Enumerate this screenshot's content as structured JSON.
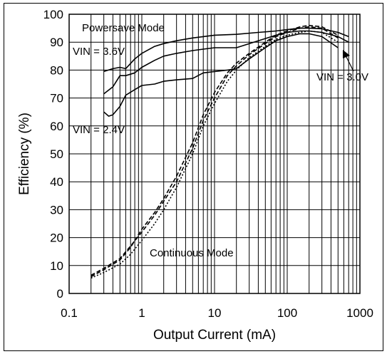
{
  "chart_data": {
    "type": "line",
    "title": "",
    "xlabel": "Output Current (mA)",
    "ylabel": "Efficiency (%)",
    "xscale": "log",
    "xlim": [
      0.1,
      1000
    ],
    "ylim": [
      0,
      100
    ],
    "grid": true,
    "x_ticks": [
      "0.1",
      "1",
      "10",
      "100",
      "1000"
    ],
    "y_ticks": [
      "0",
      "10",
      "20",
      "30",
      "40",
      "50",
      "60",
      "70",
      "80",
      "90",
      "100"
    ],
    "annotations": [
      "Powersave Mode",
      "VIN = 3.6V",
      "VIN = 2.4V",
      "VIN = 3.0V",
      "Continuous Mode"
    ],
    "series": [
      {
        "mode": "powersave",
        "vin": "3.6V",
        "style": "solid",
        "x": [
          0.3,
          0.4,
          0.5,
          0.6,
          0.8,
          1,
          1.5,
          2,
          3,
          5,
          7,
          10,
          20,
          40,
          70,
          100,
          150,
          200,
          300,
          500,
          700
        ],
        "y": [
          79.5,
          80.5,
          81,
          80.5,
          84,
          86,
          88.5,
          89.5,
          90.5,
          91.5,
          92,
          92.5,
          92.8,
          93.5,
          94,
          94.5,
          95,
          95,
          94.8,
          93.5,
          92
        ]
      },
      {
        "mode": "powersave",
        "vin": "3.0V",
        "style": "solid",
        "x": [
          0.3,
          0.4,
          0.5,
          0.6,
          0.8,
          1,
          1.5,
          2,
          3,
          5,
          7,
          10,
          20,
          40,
          70,
          100,
          150,
          200,
          300,
          500,
          700
        ],
        "y": [
          71.5,
          74,
          78,
          78,
          79,
          81,
          83.5,
          85,
          86,
          87,
          87.5,
          88,
          88,
          90.5,
          92.5,
          93.5,
          94,
          94,
          93.5,
          92,
          90
        ]
      },
      {
        "mode": "powersave",
        "vin": "2.4V",
        "style": "solid",
        "x": [
          0.3,
          0.35,
          0.4,
          0.5,
          0.6,
          0.8,
          1,
          1.5,
          2,
          3,
          5,
          7,
          10,
          15,
          20,
          30,
          50,
          70,
          100,
          150,
          200,
          300,
          500
        ],
        "y": [
          65,
          63.5,
          64,
          67,
          71,
          73,
          74.5,
          75,
          76,
          76.5,
          77,
          79,
          79.5,
          80,
          80.5,
          84,
          88,
          90.5,
          92,
          93,
          93,
          92,
          88
        ]
      },
      {
        "mode": "continuous",
        "vin": "3.6V",
        "style": "dashed",
        "x": [
          0.2,
          0.3,
          0.5,
          0.7,
          1,
          1.5,
          2,
          3,
          5,
          7,
          10,
          15,
          20,
          30,
          50,
          70,
          100,
          150,
          200,
          300,
          500
        ],
        "y": [
          6,
          8.5,
          12,
          16.5,
          23,
          29,
          34,
          42,
          54,
          64,
          72,
          79,
          82.5,
          86,
          90,
          92.5,
          94,
          95.5,
          96,
          95.5,
          92.5
        ]
      },
      {
        "mode": "continuous",
        "vin": "3.0V",
        "style": "dashed",
        "x": [
          0.2,
          0.3,
          0.5,
          0.7,
          1,
          1.5,
          2,
          3,
          5,
          7,
          10,
          15,
          20,
          30,
          50,
          70,
          100,
          150,
          200,
          300,
          500
        ],
        "y": [
          6.5,
          9,
          12.5,
          17,
          22,
          28,
          33,
          40,
          52,
          62,
          70,
          78,
          81.5,
          85.5,
          89.5,
          92,
          93.5,
          95,
          95.5,
          95,
          91.5
        ]
      },
      {
        "mode": "continuous",
        "vin": "2.4V",
        "style": "dotted",
        "x": [
          0.2,
          0.3,
          0.5,
          0.7,
          1,
          1.5,
          2,
          3,
          5,
          7,
          10,
          15,
          20,
          30,
          50,
          70,
          100,
          150,
          200,
          300,
          500
        ],
        "y": [
          5.5,
          7.5,
          10.5,
          14,
          19,
          25,
          30,
          38,
          50,
          60,
          68,
          76,
          80,
          84.5,
          88.5,
          91,
          92.5,
          93.5,
          94,
          93.5,
          90
        ]
      }
    ]
  }
}
